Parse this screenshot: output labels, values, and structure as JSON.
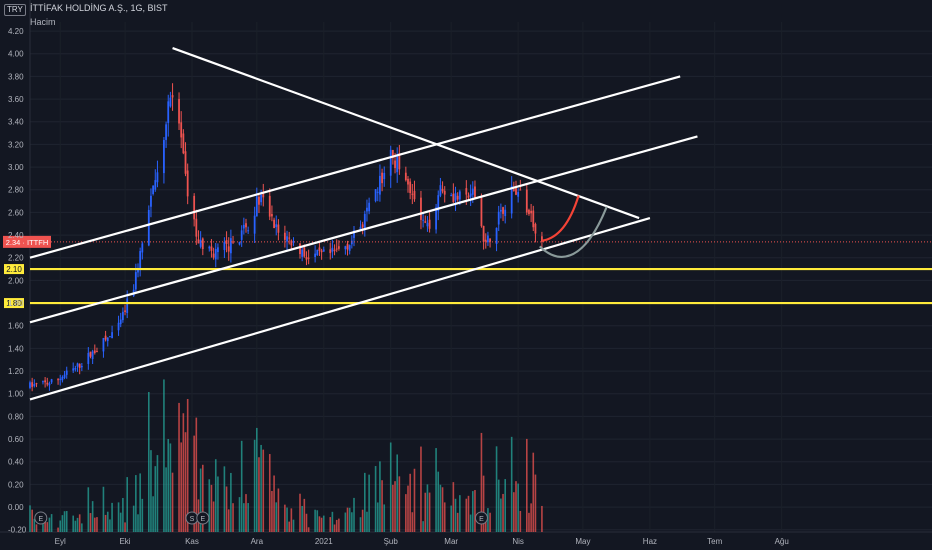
{
  "header": {
    "currency": "TRY",
    "title": "İTTİFAK HOLDİNG A.Ş., 1G, BIST",
    "volume_label": "Hacim"
  },
  "colors": {
    "background": "#131722",
    "up": "#2962ff",
    "down": "#ef5350",
    "vol_up": "#26a69a",
    "vol_down": "#ef5350",
    "trendline": "#ffffff",
    "support": "#ffeb3b",
    "path_red": "#f44336",
    "path_gray": "#8a9a9a"
  },
  "chart_data": {
    "type": "candlestick",
    "symbol": "ITTFH",
    "current_price": 2.34,
    "price_label": "2.34 · ITTFH",
    "y_ticks": [
      "4.20",
      "4.00",
      "3.80",
      "3.60",
      "3.40",
      "3.20",
      "3.00",
      "2.80",
      "2.60",
      "2.40",
      "2.20",
      "2.00",
      "1.80",
      "1.60",
      "1.40",
      "1.20",
      "1.00",
      "0.80",
      "0.60",
      "0.40",
      "0.20",
      "0.00",
      "-0.20"
    ],
    "x_ticks": [
      "Eyl",
      "Eki",
      "Kas",
      "Ara",
      "2021",
      "Şub",
      "Mar",
      "Nis",
      "May",
      "Haz",
      "Tem",
      "Ağu"
    ],
    "y_range": [
      -0.22,
      4.28
    ],
    "support_levels": [
      {
        "price": 2.1,
        "label": "2.10"
      },
      {
        "price": 1.8,
        "label": "1.80"
      }
    ],
    "trendlines": [
      {
        "name": "descending-resistance",
        "from": [
          "2020-10-23",
          4.05
        ],
        "to": [
          "2021-05-27",
          2.55
        ]
      },
      {
        "name": "upper-channel",
        "from": [
          "2020-08-18",
          2.2
        ],
        "to": [
          "2021-06-15",
          3.8
        ]
      },
      {
        "name": "middle-channel",
        "from": [
          "2020-08-18",
          1.63
        ],
        "to": [
          "2021-06-23",
          3.27
        ]
      },
      {
        "name": "lower-channel",
        "from": [
          "2020-08-18",
          0.95
        ],
        "to": [
          "2021-06-01",
          2.55
        ]
      }
    ],
    "scenario_paths": [
      {
        "name": "bullish-path",
        "points": [
          [
            "2021-04-12",
            2.35
          ],
          [
            "2021-04-23",
            2.38
          ],
          [
            "2021-04-29",
            2.75
          ]
        ]
      },
      {
        "name": "bearish-path",
        "points": [
          [
            "2021-04-11",
            2.3
          ],
          [
            "2021-04-19",
            2.15
          ],
          [
            "2021-05-01",
            2.13
          ],
          [
            "2021-05-12",
            2.65
          ]
        ]
      }
    ],
    "events": [
      {
        "date": "2020-08-23",
        "label": "E"
      },
      {
        "date": "2020-11-01",
        "label": "S"
      },
      {
        "date": "2020-11-06",
        "label": "E"
      },
      {
        "date": "2021-03-15",
        "label": "E"
      }
    ],
    "series_anchors": [
      [
        "2020-08-18",
        1.07
      ],
      [
        "2020-08-28",
        1.1
      ],
      [
        "2020-09-08",
        1.22
      ],
      [
        "2020-09-18",
        1.4
      ],
      [
        "2020-09-28",
        1.58
      ],
      [
        "2020-10-05",
        1.95
      ],
      [
        "2020-10-12",
        2.6
      ],
      [
        "2020-10-17",
        3.05
      ],
      [
        "2020-10-22",
        3.7
      ],
      [
        "2020-10-26",
        3.4
      ],
      [
        "2020-10-30",
        2.7
      ],
      [
        "2020-11-04",
        2.35
      ],
      [
        "2020-11-10",
        2.25
      ],
      [
        "2020-11-18",
        2.3
      ],
      [
        "2020-11-26",
        2.45
      ],
      [
        "2020-12-03",
        2.78
      ],
      [
        "2020-12-10",
        2.45
      ],
      [
        "2020-12-18",
        2.33
      ],
      [
        "2020-12-25",
        2.2
      ],
      [
        "2021-01-05",
        2.23
      ],
      [
        "2021-01-14",
        2.35
      ],
      [
        "2021-01-22",
        2.62
      ],
      [
        "2021-02-01",
        3.1
      ],
      [
        "2021-02-08",
        2.95
      ],
      [
        "2021-02-14",
        2.55
      ],
      [
        "2021-02-18",
        2.45
      ],
      [
        "2021-02-24",
        2.83
      ],
      [
        "2021-03-05",
        2.72
      ],
      [
        "2021-03-12",
        2.75
      ],
      [
        "2021-03-17",
        2.3
      ],
      [
        "2021-03-24",
        2.62
      ],
      [
        "2021-03-30",
        2.82
      ],
      [
        "2021-04-05",
        2.65
      ],
      [
        "2021-04-12",
        2.34
      ]
    ]
  }
}
